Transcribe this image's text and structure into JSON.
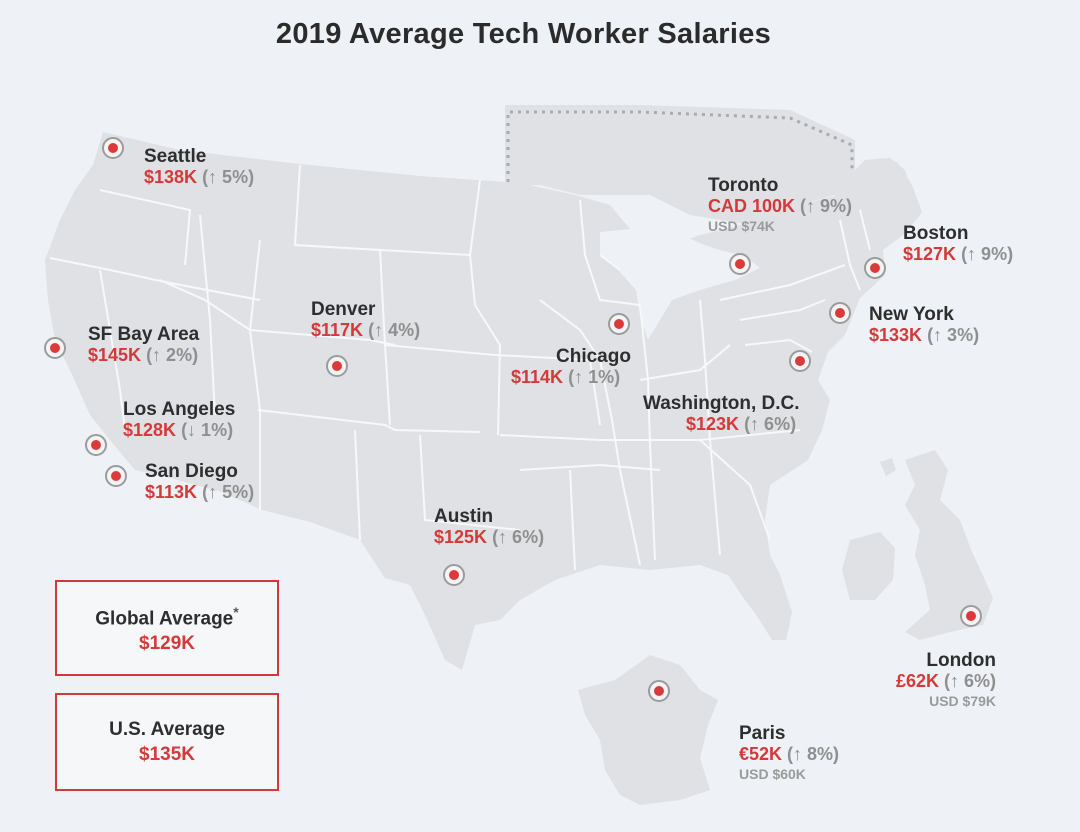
{
  "title": "2019 Average Tech Worker Salaries",
  "colors": {
    "marker": "#dc3a3a",
    "salary": "#d43a3a",
    "land": "#dfe1e4",
    "border": "#f7f8fa",
    "box_border": "#d2393b"
  },
  "cities": [
    {
      "id": "seattle",
      "name": "Seattle",
      "salary": "$138K",
      "change": "(↑ 5%)",
      "usd": ""
    },
    {
      "id": "sf",
      "name": "SF Bay Area",
      "salary": "$145K",
      "change": "(↑ 2%)",
      "usd": ""
    },
    {
      "id": "la",
      "name": "Los Angeles",
      "salary": "$128K",
      "change": "(↓ 1%)",
      "usd": ""
    },
    {
      "id": "sd",
      "name": "San Diego",
      "salary": "$113K",
      "change": "(↑ 5%)",
      "usd": ""
    },
    {
      "id": "denver",
      "name": "Denver",
      "salary": "$117K",
      "change": "(↑ 4%)",
      "usd": ""
    },
    {
      "id": "austin",
      "name": "Austin",
      "salary": "$125K",
      "change": "(↑ 6%)",
      "usd": ""
    },
    {
      "id": "chicago",
      "name": "Chicago",
      "salary": "$114K",
      "change": "(↑ 1%)",
      "usd": ""
    },
    {
      "id": "toronto",
      "name": "Toronto",
      "salary": "CAD 100K",
      "change": "(↑ 9%)",
      "usd": "USD $74K"
    },
    {
      "id": "boston",
      "name": "Boston",
      "salary": "$127K",
      "change": "(↑ 9%)",
      "usd": ""
    },
    {
      "id": "ny",
      "name": "New York",
      "salary": "$133K",
      "change": "(↑ 3%)",
      "usd": ""
    },
    {
      "id": "dc",
      "name": "Washington, D.C.",
      "salary": "$123K",
      "change": "(↑ 6%)",
      "usd": ""
    },
    {
      "id": "london",
      "name": "London",
      "salary": "£62K",
      "change": "(↑ 6%)",
      "usd": "USD $79K"
    },
    {
      "id": "paris",
      "name": "Paris",
      "salary": "€52K",
      "change": "(↑ 8%)",
      "usd": "USD $60K"
    }
  ],
  "global_average": {
    "label": "Global Average",
    "note_mark": "*",
    "value": "$129K"
  },
  "us_average": {
    "label": "U.S. Average",
    "value": "$135K"
  }
}
